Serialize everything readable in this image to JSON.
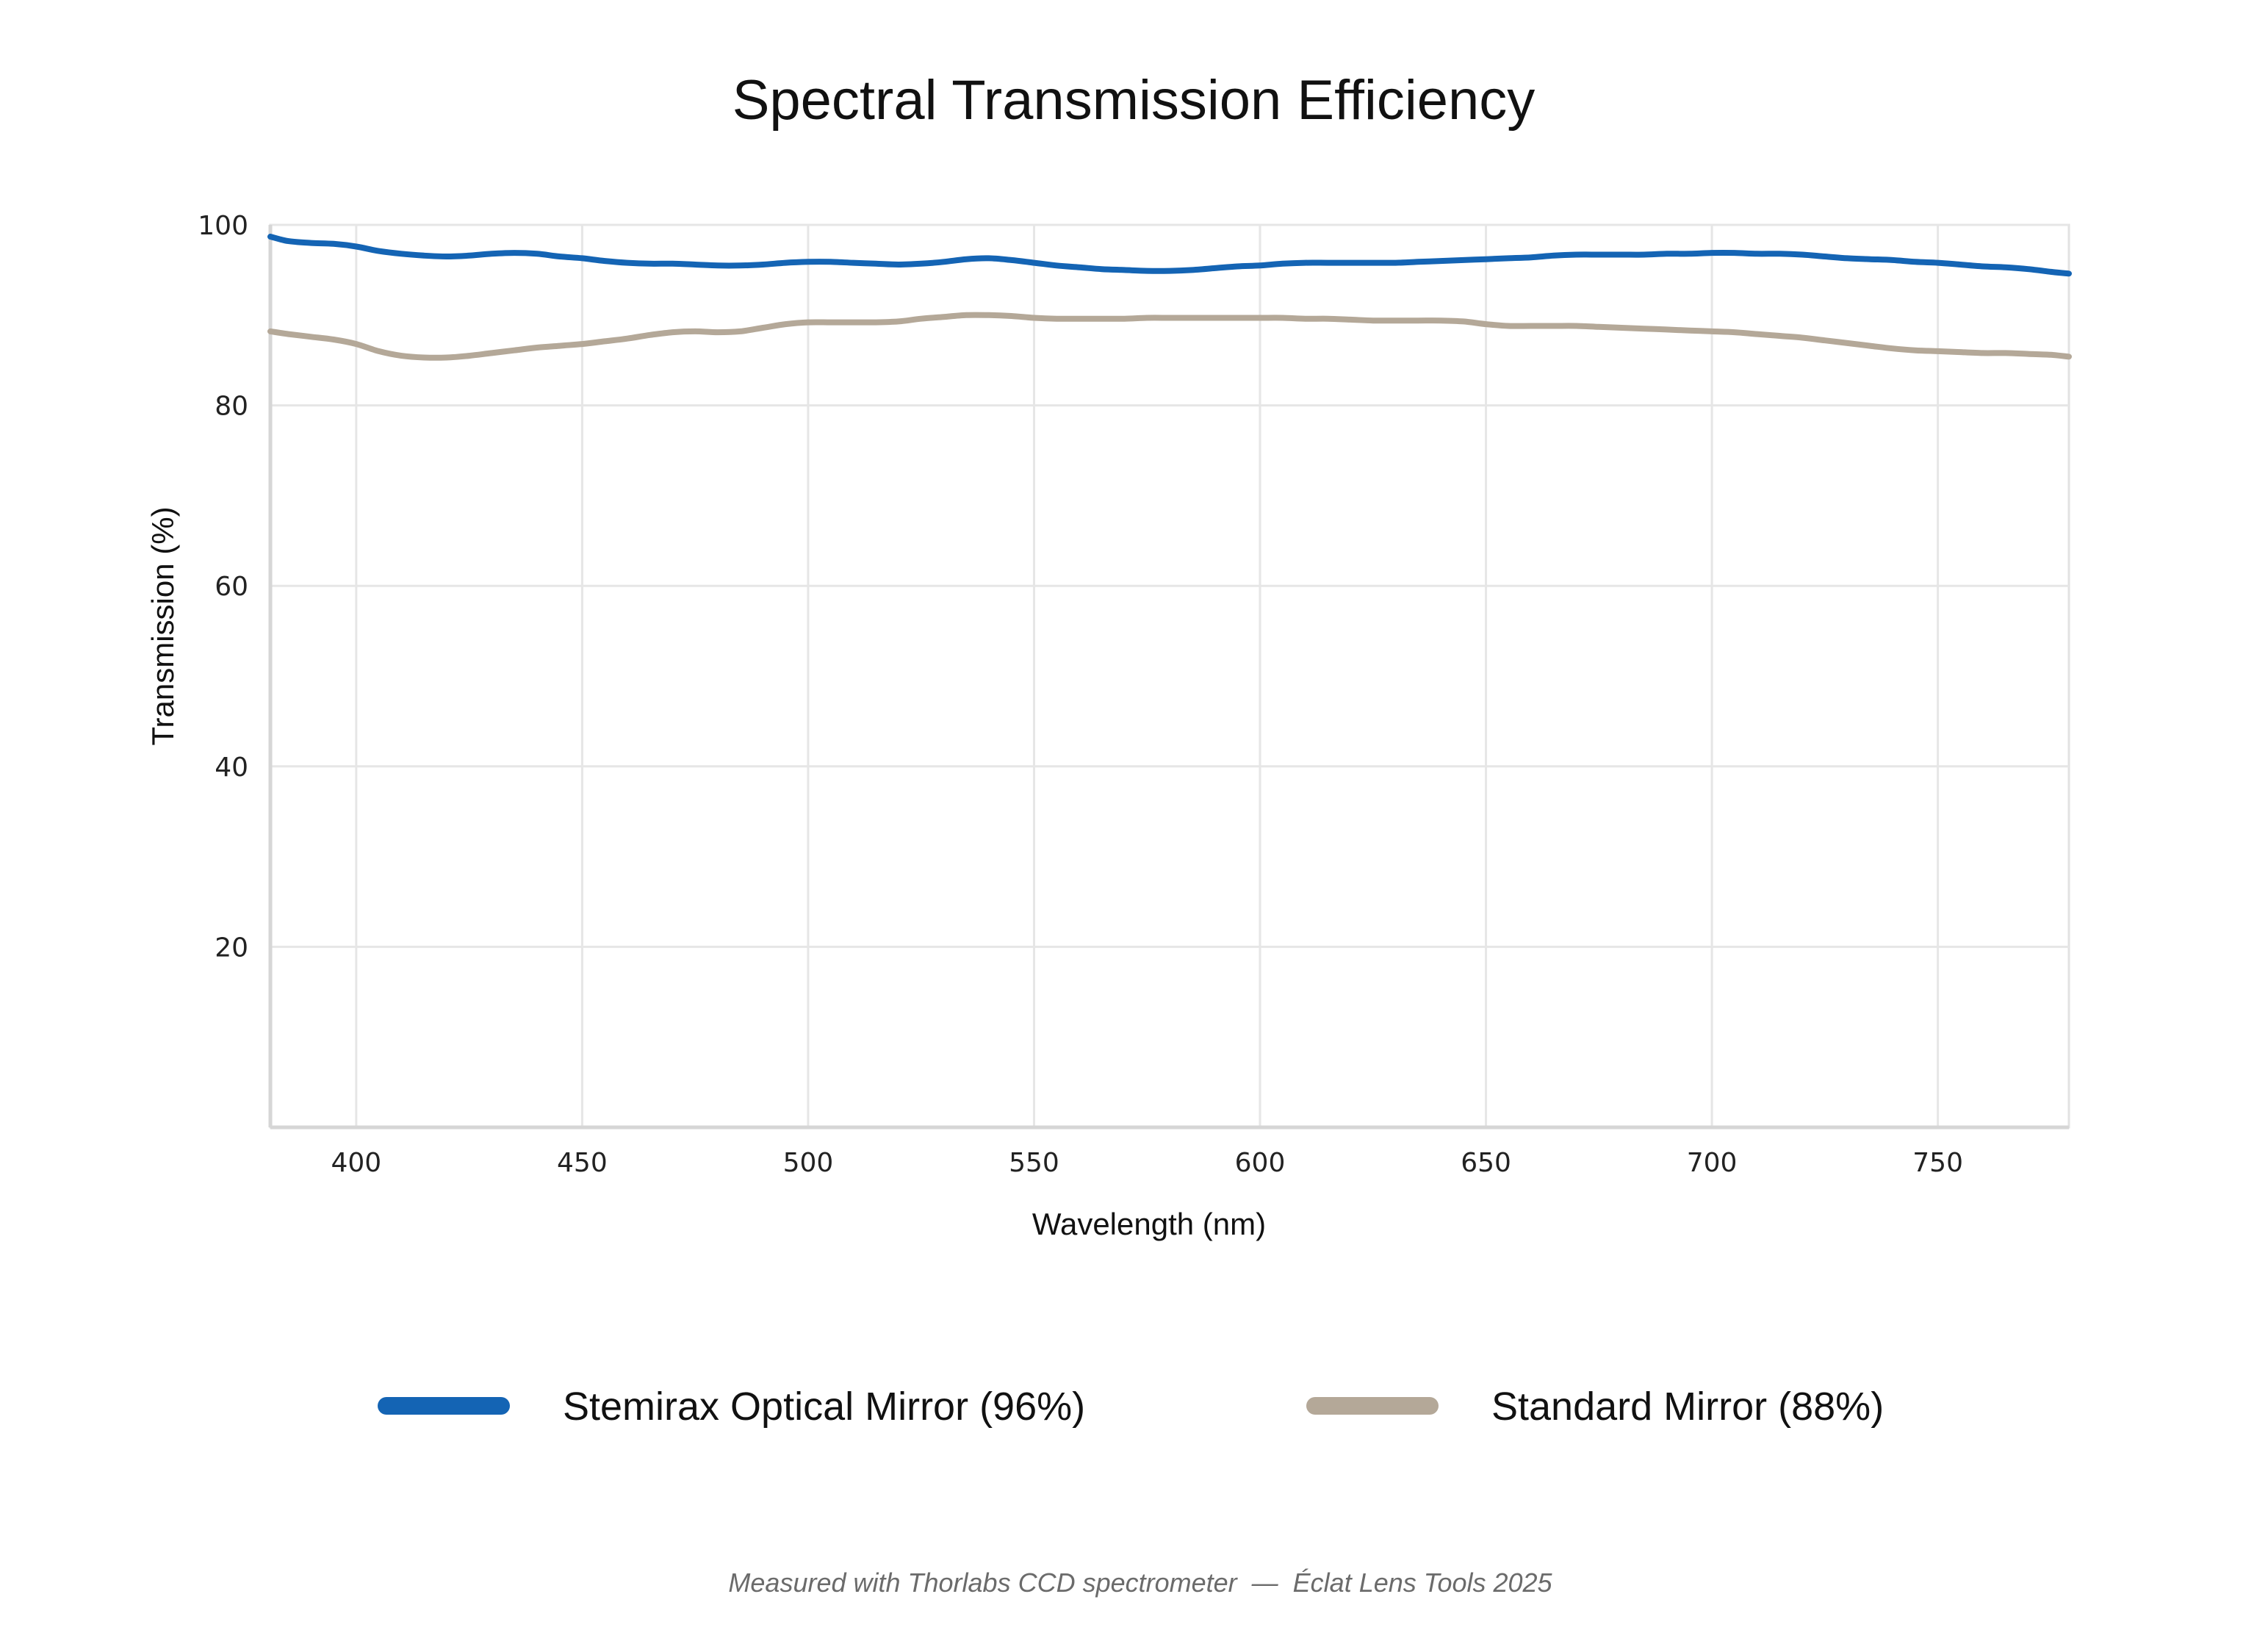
{
  "chart_data": {
    "type": "line",
    "title": "Spectral Transmission Efficiency",
    "xlabel": "Wavelength (nm)",
    "ylabel": "Transmission (%)",
    "xlim": [
      381,
      779
    ],
    "ylim": [
      0,
      100
    ],
    "x_ticks": [
      400,
      450,
      500,
      550,
      600,
      650,
      700,
      750
    ],
    "y_ticks": [
      20,
      40,
      60,
      80,
      100
    ],
    "grid": true,
    "legend_position": "bottom",
    "series": [
      {
        "name": "Stemirax Optical Mirror (96%)",
        "color": "#1464b4",
        "x": [
          381,
          385,
          390,
          395,
          400,
          405,
          410,
          415,
          420,
          425,
          430,
          435,
          440,
          445,
          450,
          455,
          460,
          465,
          470,
          475,
          480,
          485,
          490,
          495,
          500,
          505,
          510,
          515,
          520,
          525,
          530,
          535,
          540,
          545,
          550,
          555,
          560,
          565,
          570,
          575,
          580,
          585,
          590,
          595,
          600,
          605,
          610,
          615,
          620,
          625,
          630,
          635,
          640,
          645,
          650,
          655,
          660,
          665,
          670,
          675,
          680,
          685,
          690,
          695,
          700,
          705,
          710,
          715,
          720,
          725,
          730,
          735,
          740,
          745,
          750,
          755,
          760,
          765,
          770,
          775,
          779
        ],
        "y": [
          98.7,
          98.2,
          98.0,
          97.9,
          97.6,
          97.1,
          96.8,
          96.6,
          96.5,
          96.6,
          96.8,
          96.9,
          96.8,
          96.5,
          96.3,
          96.0,
          95.8,
          95.7,
          95.7,
          95.6,
          95.5,
          95.5,
          95.6,
          95.8,
          95.9,
          95.9,
          95.8,
          95.7,
          95.6,
          95.7,
          95.9,
          96.2,
          96.3,
          96.1,
          95.8,
          95.5,
          95.3,
          95.1,
          95.0,
          94.9,
          94.9,
          95.0,
          95.2,
          95.4,
          95.5,
          95.7,
          95.8,
          95.8,
          95.8,
          95.8,
          95.8,
          95.9,
          96.0,
          96.1,
          96.2,
          96.3,
          96.4,
          96.6,
          96.7,
          96.7,
          96.7,
          96.7,
          96.8,
          96.8,
          96.9,
          96.9,
          96.8,
          96.8,
          96.7,
          96.5,
          96.3,
          96.2,
          96.1,
          95.9,
          95.8,
          95.6,
          95.4,
          95.3,
          95.1,
          94.8,
          94.6
        ]
      },
      {
        "name": "Standard Mirror (88%)",
        "color": "#b4a898",
        "x": [
          381,
          385,
          390,
          395,
          400,
          405,
          410,
          415,
          420,
          425,
          430,
          435,
          440,
          445,
          450,
          455,
          460,
          465,
          470,
          475,
          480,
          485,
          490,
          495,
          500,
          505,
          510,
          515,
          520,
          525,
          530,
          535,
          540,
          545,
          550,
          555,
          560,
          565,
          570,
          575,
          580,
          585,
          590,
          595,
          600,
          605,
          610,
          615,
          620,
          625,
          630,
          635,
          640,
          645,
          650,
          655,
          660,
          665,
          670,
          675,
          680,
          685,
          690,
          695,
          700,
          705,
          710,
          715,
          720,
          725,
          730,
          735,
          740,
          745,
          750,
          755,
          760,
          765,
          770,
          775,
          779
        ],
        "y": [
          88.2,
          87.9,
          87.6,
          87.3,
          86.8,
          86.0,
          85.5,
          85.3,
          85.3,
          85.5,
          85.8,
          86.1,
          86.4,
          86.6,
          86.8,
          87.1,
          87.4,
          87.8,
          88.1,
          88.2,
          88.1,
          88.2,
          88.6,
          89.0,
          89.2,
          89.2,
          89.2,
          89.2,
          89.3,
          89.6,
          89.8,
          90.0,
          90.0,
          89.9,
          89.7,
          89.6,
          89.6,
          89.6,
          89.6,
          89.7,
          89.7,
          89.7,
          89.7,
          89.7,
          89.7,
          89.7,
          89.6,
          89.6,
          89.5,
          89.4,
          89.4,
          89.4,
          89.4,
          89.3,
          89.0,
          88.8,
          88.8,
          88.8,
          88.8,
          88.7,
          88.6,
          88.5,
          88.4,
          88.3,
          88.2,
          88.1,
          87.9,
          87.7,
          87.5,
          87.2,
          86.9,
          86.6,
          86.3,
          86.1,
          86.0,
          85.9,
          85.8,
          85.8,
          85.7,
          85.6,
          85.4
        ]
      }
    ],
    "footnote": "Measured with Thorlabs CCD spectrometer  —  Éclat Lens Tools 2025"
  }
}
